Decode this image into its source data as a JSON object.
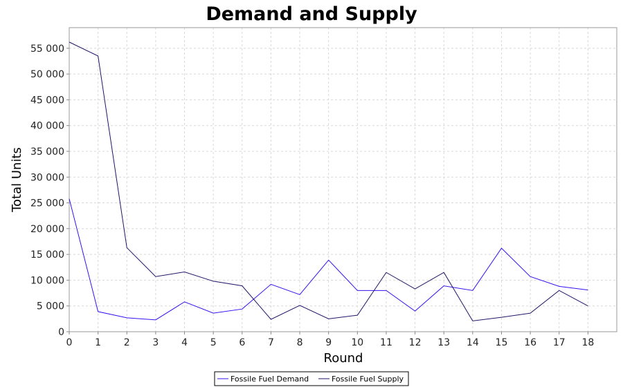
{
  "chart_data": {
    "type": "line",
    "title": "Demand and Supply",
    "xlabel": "Round",
    "ylabel": "Total Units",
    "xlim": [
      0,
      19
    ],
    "ylim": [
      0,
      59000
    ],
    "x_ticks": [
      0,
      1,
      2,
      3,
      4,
      5,
      6,
      7,
      8,
      9,
      10,
      11,
      12,
      13,
      14,
      15,
      16,
      17,
      18
    ],
    "y_ticks": [
      0,
      5000,
      10000,
      15000,
      20000,
      25000,
      30000,
      35000,
      40000,
      45000,
      50000,
      55000
    ],
    "y_tick_labels": [
      "0",
      "5 000",
      "10 000",
      "15 000",
      "20 000",
      "25 000",
      "30 000",
      "35 000",
      "40 000",
      "45 000",
      "50 000",
      "55 000"
    ],
    "grid": true,
    "legend_position": "bottom",
    "x": [
      0,
      1,
      2,
      3,
      4,
      5,
      6,
      7,
      8,
      9,
      10,
      11,
      12,
      13,
      14,
      15,
      16,
      17,
      18
    ],
    "series": [
      {
        "name": "Fossile Fuel Demand",
        "color": "#3311ee",
        "values": [
          25800,
          3900,
          2700,
          2300,
          5800,
          3600,
          4400,
          9200,
          7200,
          13900,
          8000,
          8000,
          4000,
          8900,
          8000,
          16200,
          10700,
          8800,
          8100
        ]
      },
      {
        "name": "Fossile Fuel Supply",
        "color": "#221166",
        "values": [
          56200,
          53500,
          16300,
          10700,
          11600,
          9800,
          8900,
          2400,
          5100,
          2500,
          3200,
          11500,
          8300,
          11500,
          2100,
          2800,
          3600,
          8000,
          5000
        ]
      }
    ]
  }
}
